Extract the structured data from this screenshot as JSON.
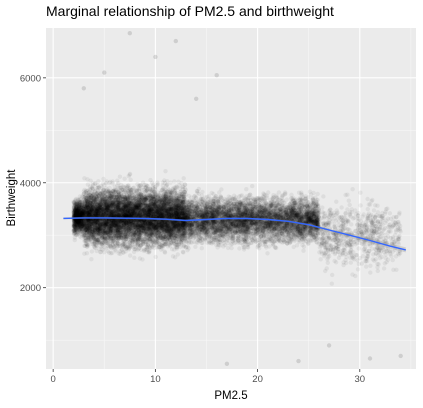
{
  "chart_data": {
    "type": "scatter",
    "title": "Marginal relationship of PM2.5 and birthweight",
    "xlabel": "PM2.5",
    "ylabel": "Birthweight",
    "xlim": [
      -0.7,
      35.5
    ],
    "ylim": [
      450,
      6950
    ],
    "x_ticks": [
      0,
      10,
      20,
      30
    ],
    "x_tick_labels": [
      "0",
      "10",
      "20",
      "30"
    ],
    "y_ticks": [
      2000,
      4000,
      6000
    ],
    "y_tick_labels": [
      "2000",
      "4000",
      "6000"
    ],
    "grid": true,
    "legend": "none",
    "smooth_line": {
      "color": "#3366ff",
      "x": [
        1,
        3,
        5,
        7,
        9,
        11,
        13,
        15,
        17,
        19,
        21,
        23,
        25,
        27,
        29,
        31,
        33,
        34.5
      ],
      "y": [
        3320,
        3330,
        3330,
        3325,
        3318,
        3305,
        3280,
        3300,
        3320,
        3318,
        3300,
        3265,
        3200,
        3100,
        3000,
        2900,
        2790,
        2720
      ]
    },
    "point_cloud": {
      "color": "#000000",
      "alpha": 0.06,
      "regions": [
        {
          "x_range": [
            2,
            13
          ],
          "y_mean": 3350,
          "y_sd": 480,
          "density": "very high"
        },
        {
          "x_range": [
            13,
            26
          ],
          "y_mean": 3300,
          "y_sd": 380,
          "density": "high"
        },
        {
          "x_range": [
            26,
            34
          ],
          "y_mean": 3000,
          "y_sd": 550,
          "density": "low"
        }
      ],
      "outliers": [
        {
          "x": 7.5,
          "y": 6850
        },
        {
          "x": 10,
          "y": 6400
        },
        {
          "x": 12,
          "y": 6700
        },
        {
          "x": 5,
          "y": 6100
        },
        {
          "x": 16,
          "y": 6050
        },
        {
          "x": 3,
          "y": 5800
        },
        {
          "x": 14,
          "y": 5600
        },
        {
          "x": 31,
          "y": 650
        },
        {
          "x": 34,
          "y": 700
        },
        {
          "x": 27,
          "y": 900
        },
        {
          "x": 24,
          "y": 600
        },
        {
          "x": 17,
          "y": 550
        }
      ]
    }
  }
}
